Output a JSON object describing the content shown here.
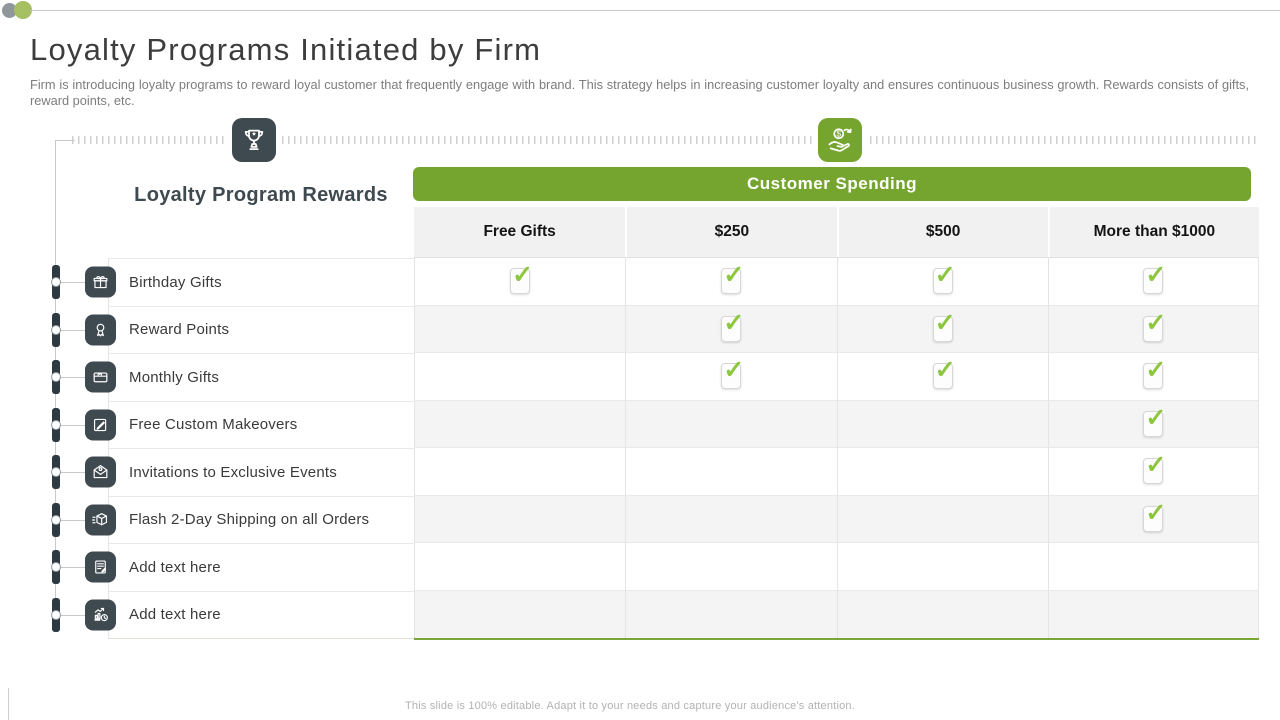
{
  "slide": {
    "title": "Loyalty Programs Initiated by Firm",
    "subtitle": "Firm is introducing loyalty programs to reward loyal customer that frequently engage with brand. This strategy helps in increasing customer loyalty and ensures continuous business growth. Rewards consists of gifts, reward points, etc.",
    "footer": "This slide is 100% editable. Adapt it to your needs and capture your audience's attention."
  },
  "decor": {
    "rewards_badge_icon": "trophy-icon",
    "spending_badge_icon": "hand-coin-icon"
  },
  "matrix": {
    "row_group_title": "Loyalty Program Rewards",
    "column_group_title": "Customer Spending",
    "columns": [
      "Free Gifts",
      "$250",
      "$500",
      "More than $1000"
    ],
    "rows": [
      {
        "label": "Birthday Gifts",
        "icon": "gift-icon",
        "placeholder": false,
        "checks": [
          true,
          true,
          true,
          true
        ]
      },
      {
        "label": "Reward Points",
        "icon": "medal-icon",
        "placeholder": false,
        "checks": [
          false,
          true,
          true,
          true
        ]
      },
      {
        "label": "Monthly Gifts",
        "icon": "gift-card-icon",
        "placeholder": false,
        "checks": [
          false,
          true,
          true,
          true
        ]
      },
      {
        "label": "Free Custom Makeovers",
        "icon": "edit-icon",
        "placeholder": false,
        "checks": [
          false,
          false,
          false,
          true
        ]
      },
      {
        "label": "Invitations to Exclusive Events",
        "icon": "invitation-icon",
        "placeholder": false,
        "checks": [
          false,
          false,
          false,
          true
        ]
      },
      {
        "label": "Flash 2-Day Shipping on all Orders",
        "icon": "package-icon",
        "placeholder": false,
        "checks": [
          false,
          false,
          false,
          true
        ]
      },
      {
        "label": "Add text here",
        "icon": "document-icon",
        "placeholder": true,
        "checks": [
          false,
          false,
          false,
          false
        ]
      },
      {
        "label": "Add text here",
        "icon": "chart-clock-icon",
        "placeholder": true,
        "checks": [
          false,
          false,
          false,
          false
        ]
      }
    ]
  },
  "colors": {
    "accent_green": "#76a52f",
    "check_green": "#8dc63f",
    "dark_slate": "#3e4950"
  }
}
